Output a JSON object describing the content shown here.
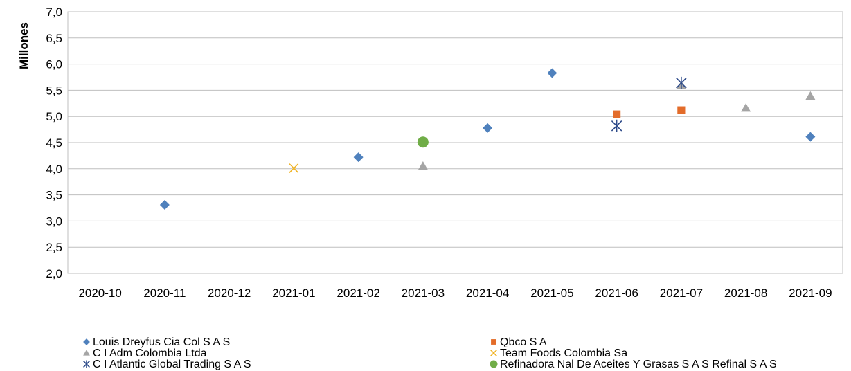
{
  "chart_data": {
    "type": "scatter",
    "title": "",
    "xlabel": "",
    "ylabel": "Millones",
    "ylim": [
      2.0,
      7.0
    ],
    "yticks": [
      "2,0",
      "2,5",
      "3,0",
      "3,5",
      "4,0",
      "4,5",
      "5,0",
      "5,5",
      "6,0",
      "6,5",
      "7,0"
    ],
    "categories": [
      "2020-10",
      "2020-11",
      "2020-12",
      "2021-01",
      "2021-02",
      "2021-03",
      "2021-04",
      "2021-05",
      "2021-06",
      "2021-07",
      "2021-08",
      "2021-09"
    ],
    "grid": true,
    "legend_position": "bottom",
    "series": [
      {
        "name": "Louis Dreyfus Cia Col S A S",
        "marker": "diamond",
        "color": "#4f81bd",
        "points": [
          [
            "2020-11",
            3.31
          ],
          [
            "2021-02",
            4.22
          ],
          [
            "2021-04",
            4.78
          ],
          [
            "2021-05",
            5.83
          ],
          [
            "2021-09",
            4.61
          ]
        ]
      },
      {
        "name": "Qbco S A",
        "marker": "square",
        "color": "#e36c2a",
        "points": [
          [
            "2021-06",
            5.04
          ],
          [
            "2021-07",
            5.12
          ]
        ]
      },
      {
        "name": "C I Adm Colombia Ltda",
        "marker": "triangle",
        "color": "#a5a5a5",
        "points": [
          [
            "2021-03",
            4.05
          ],
          [
            "2021-07",
            5.59
          ],
          [
            "2021-08",
            5.16
          ],
          [
            "2021-09",
            5.39
          ]
        ]
      },
      {
        "name": "Team Foods Colombia Sa",
        "marker": "x",
        "color": "#f0b323",
        "points": [
          [
            "2021-01",
            4.01
          ]
        ]
      },
      {
        "name": "C I Atlantic Global Trading S A S",
        "marker": "star",
        "color": "#2e4b8a",
        "points": [
          [
            "2021-06",
            4.82
          ],
          [
            "2021-07",
            5.64
          ]
        ]
      },
      {
        "name": "Refinadora Nal De Aceites Y Grasas S A S Refinal S A S",
        "marker": "circle",
        "color": "#70ad47",
        "points": [
          [
            "2021-03",
            4.51
          ]
        ]
      }
    ]
  }
}
